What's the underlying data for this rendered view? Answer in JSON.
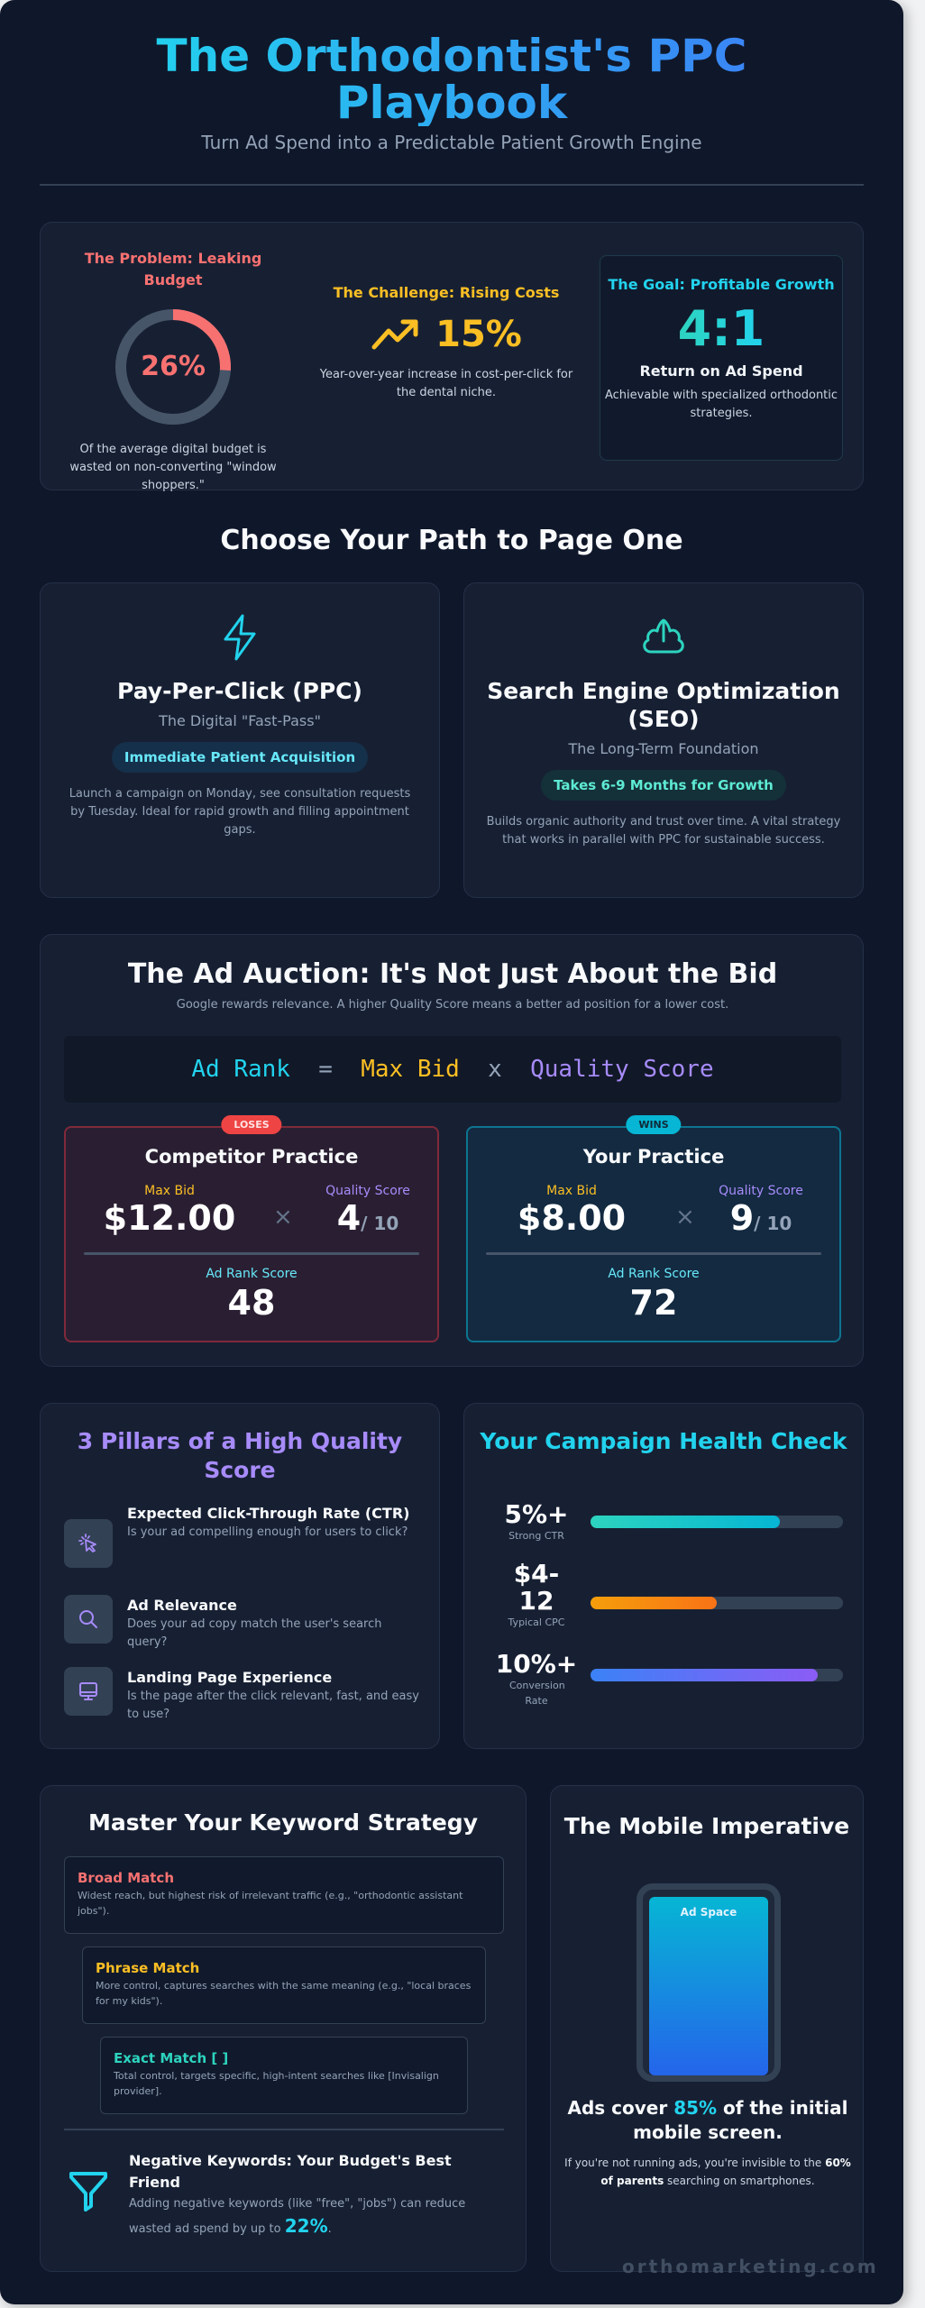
{
  "header": {
    "title": "The Orthodontist's PPC Playbook",
    "subtitle": "Turn Ad Spend into a Predictable Patient Growth Engine"
  },
  "stats": {
    "problem": {
      "title": "The Problem: Leaking Budget",
      "value": "26%",
      "percent": 26,
      "description": "Of the average digital budget is wasted on non-converting \"window shoppers.\""
    },
    "challenge": {
      "title": "The Challenge: Rising Costs",
      "value": "15%",
      "icon": "trending-up-icon",
      "description": "Year-over-year increase in cost-per-click for the dental niche."
    },
    "goal": {
      "title": "The Goal: Profitable Growth",
      "value": "4:1",
      "label": "Return on Ad Spend",
      "description": "Achievable with specialized orthodontic strategies."
    }
  },
  "paths": {
    "heading": "Choose Your Path to Page One",
    "ppc": {
      "icon": "lightning-bolt-icon",
      "title": "Pay-Per-Click (PPC)",
      "subtitle": "The Digital \"Fast-Pass\"",
      "pill": "Immediate Patient Acquisition",
      "description": "Launch a campaign on Monday, see consultation requests by Tuesday. Ideal for rapid growth and filling appointment gaps."
    },
    "seo": {
      "icon": "cloud-upload-icon",
      "title": "Search Engine Optimization (SEO)",
      "subtitle": "The Long-Term Foundation",
      "pill": "Takes 6-9 Months for Growth",
      "description": "Builds organic authority and trust over time. A vital strategy that works in parallel with PPC for sustainable success."
    }
  },
  "auction": {
    "title": "The Ad Auction: It's Not Just About the Bid",
    "subtitle": "Google rewards relevance. A higher Quality Score means a better ad position for a lower cost.",
    "formula": {
      "ad_rank": "Ad Rank",
      "equals": "=",
      "max_bid": "Max Bid",
      "times": "x",
      "quality_score": "Quality Score"
    },
    "competitor": {
      "badge": "LOSES",
      "title": "Competitor Practice",
      "bid_label": "Max Bid",
      "bid": "$12.00",
      "qs_label": "Quality Score",
      "qs": "4",
      "qs_max": "/ 10",
      "rank_label": "Ad Rank Score",
      "rank": "48"
    },
    "yours": {
      "badge": "WINS",
      "title": "Your Practice",
      "bid_label": "Max Bid",
      "bid": "$8.00",
      "qs_label": "Quality Score",
      "qs": "9",
      "qs_max": "/ 10",
      "rank_label": "Ad Rank Score",
      "rank": "72"
    },
    "multiply_symbol": "×"
  },
  "pillars": {
    "title": "3 Pillars of a High Quality Score",
    "items": [
      {
        "icon": "cursor-click-icon",
        "title": "Expected Click-Through Rate (CTR)",
        "description": "Is your ad compelling enough for users to click?"
      },
      {
        "icon": "search-icon",
        "title": "Ad Relevance",
        "description": "Does your ad copy match the user's search query?"
      },
      {
        "icon": "monitor-icon",
        "title": "Landing Page Experience",
        "description": "Is the page after the click relevant, fast, and easy to use?"
      }
    ]
  },
  "health": {
    "title": "Your Campaign Health Check",
    "metrics": [
      {
        "value": "5%+",
        "label": "Strong CTR",
        "fill_percent": 75,
        "color_from": "#2dd4bf",
        "color_to": "#06b6d4"
      },
      {
        "value": "$4-12",
        "label": "Typical CPC",
        "fill_percent": 50,
        "color_from": "#f59e0b",
        "color_to": "#f97316"
      },
      {
        "value": "10%+",
        "label": "Conversion Rate",
        "fill_percent": 90,
        "color_from": "#3b82f6",
        "color_to": "#8b5cf6"
      }
    ]
  },
  "keywords": {
    "title": "Master Your Keyword Strategy",
    "match_types": [
      {
        "title": "Broad Match",
        "color": "#f87171",
        "description": "Widest reach, but highest risk of irrelevant traffic (e.g., \"orthodontic assistant jobs\")."
      },
      {
        "title": "Phrase Match",
        "color": "#fbbf24",
        "description": "More control, captures searches with the same meaning (e.g., \"local braces for my kids\")."
      },
      {
        "title": "Exact Match [ ]",
        "color": "#2dd4bf",
        "description": "Total control, targets specific, high-intent searches like [Invisalign provider]."
      }
    ],
    "negative": {
      "icon": "filter-funnel-icon",
      "title": "Negative Keywords: Your Budget's Best Friend",
      "description_prefix": "Adding negative keywords (like \"free\", \"jobs\") can reduce wasted ad spend by up to ",
      "highlight": "22%",
      "description_suffix": "."
    }
  },
  "mobile": {
    "title": "The Mobile Imperative",
    "ad_space_label": "Ad Space",
    "stat_prefix": "Ads cover ",
    "stat_highlight": "85%",
    "stat_suffix": " of the initial mobile screen.",
    "desc_prefix": "If you're not running ads, you're invisible to the ",
    "desc_bold": "60% of parents",
    "desc_suffix": " searching on smartphones."
  },
  "footer": {
    "watermark": "orthomarketing.com"
  },
  "colors": {
    "background": "#0f172a",
    "card": "#172033",
    "cyan": "#22d3ee",
    "red": "#f87171",
    "yellow": "#fbbf24",
    "violet": "#a78bfa",
    "teal": "#2dd4bf"
  }
}
